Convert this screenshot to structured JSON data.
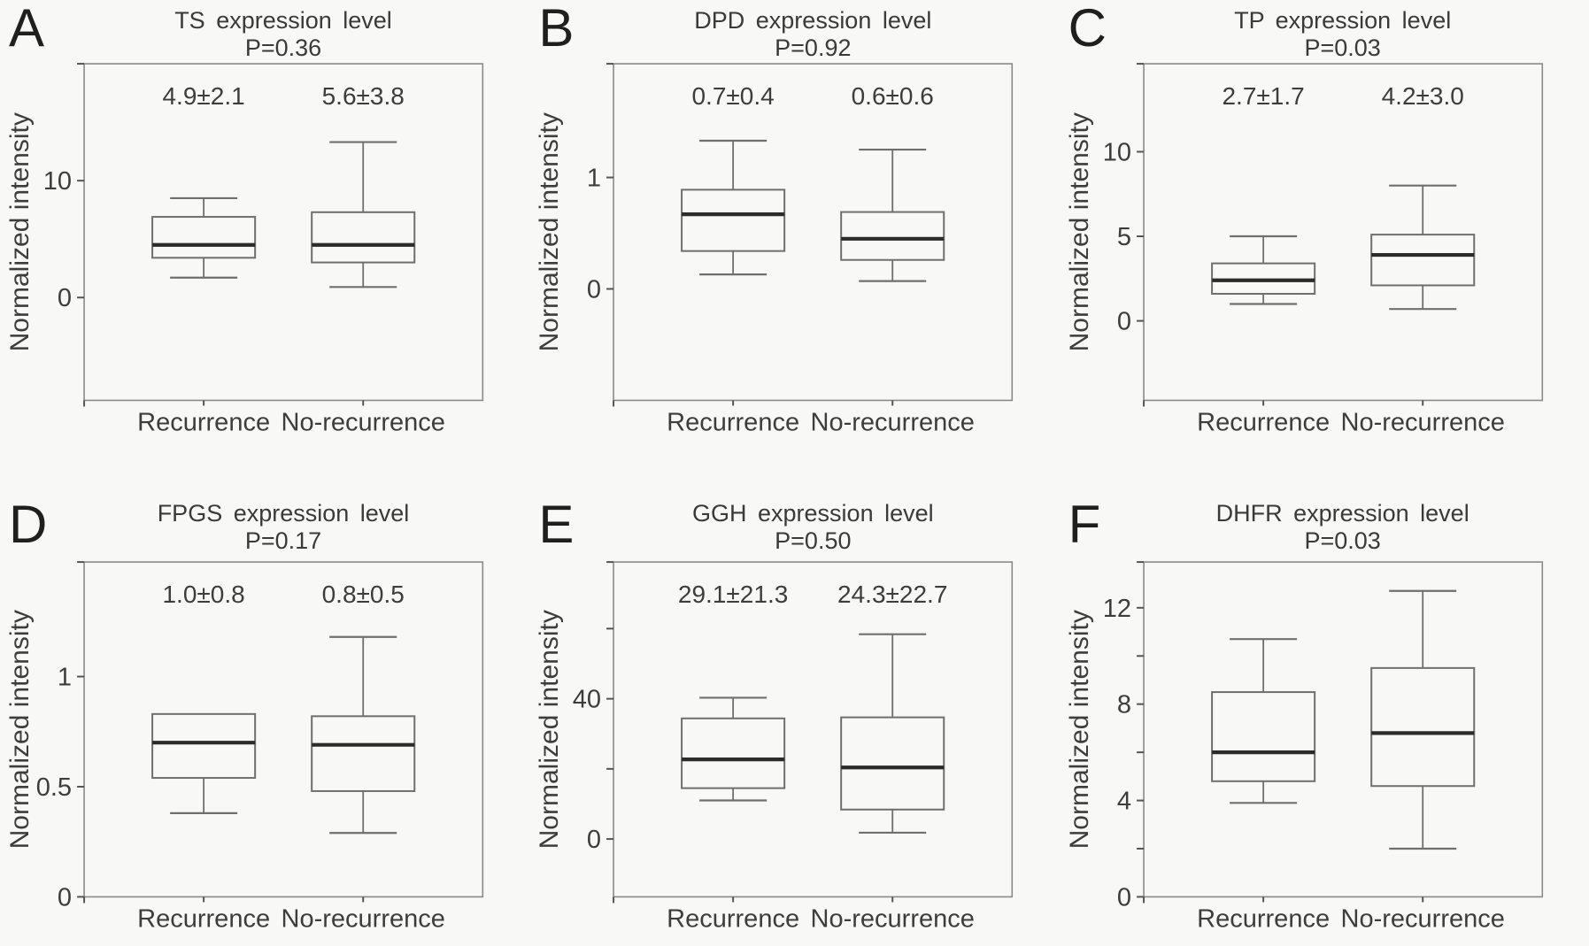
{
  "colors": {
    "background": "#f8f8f6",
    "frame": "#8a8a8a",
    "line": "#6f6f6f",
    "median": "#2b2b2b",
    "text": "#3d3d3d",
    "tick": "#555555"
  },
  "chart_data": [
    {
      "type": "boxplot",
      "panel_letter": "A",
      "title": "TS expression level",
      "p_label": "P=0.36",
      "ylabel": "Normalized intensity",
      "categories": [
        "Recurrence",
        "No-recurrence"
      ],
      "ylim": [
        -8.8,
        20.0
      ],
      "yticks": [
        {
          "value": 0,
          "label": "0"
        },
        {
          "value": 10,
          "label": "10"
        }
      ],
      "mean_sd_labels": [
        "4.9±2.1",
        "5.6±3.8"
      ],
      "boxes": [
        {
          "category": "Recurrence",
          "whisker_low": 1.7,
          "q1": 3.4,
          "median": 4.5,
          "q3": 6.9,
          "whisker_high": 8.5
        },
        {
          "category": "No-recurrence",
          "whisker_low": 0.9,
          "q1": 3.0,
          "median": 4.5,
          "q3": 7.3,
          "whisker_high": 13.3
        }
      ]
    },
    {
      "type": "boxplot",
      "panel_letter": "B",
      "title": "DPD expression level",
      "p_label": "P=0.92",
      "ylabel": "Normalized intensity",
      "categories": [
        "Recurrence",
        "No-recurrence"
      ],
      "ylim": [
        -1.0,
        2.02
      ],
      "yticks": [
        {
          "value": 0,
          "label": "0"
        },
        {
          "value": 1,
          "label": "1"
        }
      ],
      "mean_sd_labels": [
        "0.7±0.4",
        "0.6±0.6"
      ],
      "boxes": [
        {
          "category": "Recurrence",
          "whisker_low": 0.13,
          "q1": 0.34,
          "median": 0.67,
          "q3": 0.89,
          "whisker_high": 1.33
        },
        {
          "category": "No-recurrence",
          "whisker_low": 0.07,
          "q1": 0.26,
          "median": 0.45,
          "q3": 0.69,
          "whisker_high": 1.25
        }
      ]
    },
    {
      "type": "boxplot",
      "panel_letter": "C",
      "title": "TP expression level",
      "p_label": "P=0.03",
      "ylabel": "Normalized intensity",
      "categories": [
        "Recurrence",
        "No-recurrence"
      ],
      "ylim": [
        -4.7,
        15.2
      ],
      "yticks": [
        {
          "value": 0,
          "label": "0"
        },
        {
          "value": 5,
          "label": "5"
        },
        {
          "value": 10,
          "label": "10"
        }
      ],
      "mean_sd_labels": [
        "2.7±1.7",
        "4.2±3.0"
      ],
      "boxes": [
        {
          "category": "Recurrence",
          "whisker_low": 1.0,
          "q1": 1.6,
          "median": 2.4,
          "q3": 3.4,
          "whisker_high": 5.0
        },
        {
          "category": "No-recurrence",
          "whisker_low": 0.7,
          "q1": 2.1,
          "median": 3.9,
          "q3": 5.1,
          "whisker_high": 8.0
        }
      ]
    },
    {
      "type": "boxplot",
      "panel_letter": "D",
      "title": "FPGS expression level",
      "p_label": "P=0.17",
      "ylabel": "Normalized intensity",
      "categories": [
        "Recurrence",
        "No-recurrence"
      ],
      "ylim": [
        0,
        1.52
      ],
      "yticks": [
        {
          "value": 0,
          "label": "0"
        },
        {
          "value": 0.5,
          "label": "0.5"
        },
        {
          "value": 1,
          "label": "1"
        }
      ],
      "mean_sd_labels": [
        "1.0±0.8",
        "0.8±0.5"
      ],
      "boxes": [
        {
          "category": "Recurrence",
          "whisker_low": 0.38,
          "q1": 0.54,
          "median": 0.7,
          "q3": 0.83,
          "whisker_high": 0.83
        },
        {
          "category": "No-recurrence",
          "whisker_low": 0.29,
          "q1": 0.48,
          "median": 0.69,
          "q3": 0.82,
          "whisker_high": 1.18
        }
      ]
    },
    {
      "type": "boxplot",
      "panel_letter": "E",
      "title": "GGH expression level",
      "p_label": "P=0.50",
      "ylabel": "Normalized intensity",
      "categories": [
        "Recurrence",
        "No-recurrence"
      ],
      "ylim": [
        -16.5,
        79.0
      ],
      "yticks": [
        {
          "value": 0,
          "label": "0"
        },
        {
          "value": 20,
          "label": ""
        },
        {
          "value": 40,
          "label": "40"
        },
        {
          "value": 60,
          "label": ""
        }
      ],
      "mean_sd_labels": [
        "29.1±21.3",
        "24.3±22.7"
      ],
      "boxes": [
        {
          "category": "Recurrence",
          "whisker_low": 11.0,
          "q1": 14.5,
          "median": 22.7,
          "q3": 34.4,
          "whisker_high": 40.3
        },
        {
          "category": "No-recurrence",
          "whisker_low": 1.8,
          "q1": 8.4,
          "median": 20.4,
          "q3": 34.7,
          "whisker_high": 58.4
        }
      ]
    },
    {
      "type": "boxplot",
      "panel_letter": "F",
      "title": "DHFR expression level",
      "p_label": "P=0.03",
      "ylabel": "Normalized intensity",
      "categories": [
        "Recurrence",
        "No-recurrence"
      ],
      "ylim": [
        0,
        13.9
      ],
      "yticks": [
        {
          "value": 0,
          "label": "0"
        },
        {
          "value": 2,
          "label": ""
        },
        {
          "value": 4,
          "label": "4"
        },
        {
          "value": 6,
          "label": ""
        },
        {
          "value": 8,
          "label": "8"
        },
        {
          "value": 10,
          "label": ""
        },
        {
          "value": 12,
          "label": "12"
        }
      ],
      "mean_sd_labels": [],
      "boxes": [
        {
          "category": "Recurrence",
          "whisker_low": 3.9,
          "q1": 4.8,
          "median": 6.0,
          "q3": 8.5,
          "whisker_high": 10.7
        },
        {
          "category": "No-recurrence",
          "whisker_low": 2.0,
          "q1": 4.6,
          "median": 6.8,
          "q3": 9.5,
          "whisker_high": 12.7
        }
      ]
    }
  ]
}
